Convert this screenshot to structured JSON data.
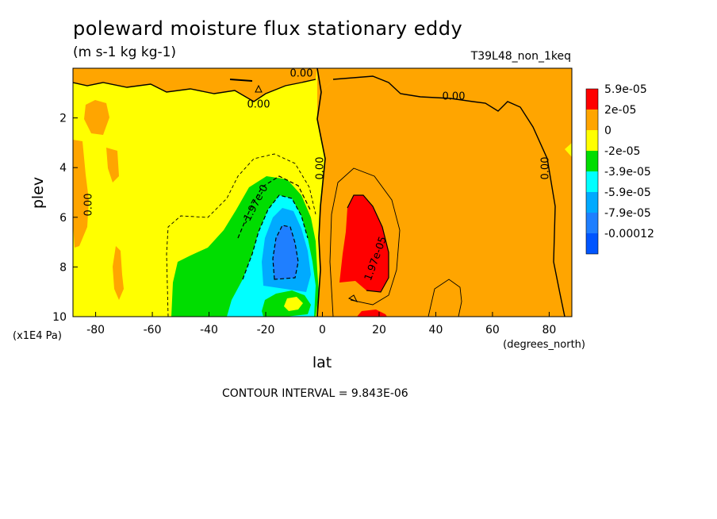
{
  "chart_data": {
    "type": "heatmap",
    "title": "poleward moisture flux stationary eddy",
    "units": "(m s-1 kg kg-1)",
    "run_label": "T39L48_non_1keq",
    "xlabel": "lat",
    "x_units": "(degrees_north)",
    "ylabel": "plev",
    "y_units": "(x1E4 Pa)",
    "xlim": [
      -88,
      88
    ],
    "ylim": [
      10,
      0
    ],
    "x_ticks": [
      "-80",
      "-60",
      "-40",
      "-20",
      "0",
      "20",
      "40",
      "60",
      "80"
    ],
    "y_ticks": [
      "2",
      "4",
      "6",
      "8",
      "10"
    ],
    "contour_interval": "CONTOUR INTERVAL = 9.843E-06",
    "contour_labels": [
      "0.00",
      "0.00",
      "0.00",
      "0.00",
      "0.00",
      "0.00",
      "-1.97e-0",
      "1.97e-05"
    ],
    "legend": {
      "labels": [
        "5.9e-05",
        "2e-05",
        "0",
        "-2e-05",
        "-3.9e-05",
        "-5.9e-05",
        "-7.9e-05",
        "-0.00012"
      ],
      "colors": [
        "#ff0000",
        "#ffa500",
        "#ffff00",
        "#00dd00",
        "#00ffff",
        "#00aaff",
        "#1f7fff",
        "#0055ff"
      ],
      "placement": "right"
    }
  },
  "colors": {
    "red": "#ff0000",
    "orange": "#ffa500",
    "yellow": "#ffff00",
    "green": "#00dd00",
    "cyan": "#00ffff",
    "light_blue": "#00aaff",
    "blue": "#1f7fff",
    "dark_blue": "#0055ff"
  }
}
